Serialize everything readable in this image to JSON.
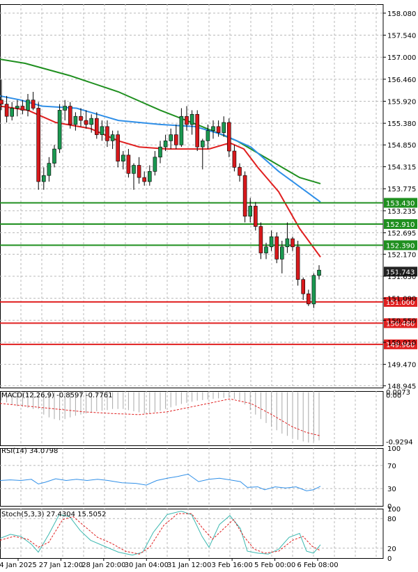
{
  "chart_data": {
    "type": "candlestick",
    "price_ticks": [
      "158.080",
      "157.540",
      "157.000",
      "156.460",
      "155.920",
      "155.380",
      "154.850",
      "154.315",
      "153.775",
      "153.235",
      "152.695",
      "152.170",
      "151.630",
      "151.090",
      "150.550",
      "150.010",
      "149.470",
      "148.945"
    ],
    "price_range": [
      148.9,
      158.3
    ],
    "x_labels": [
      "4 Jan 2025",
      "27 Jan 12:00",
      "28 Jan 20:00",
      "30 Jan 04:00",
      "31 Jan 12:00",
      "3 Feb 16:00",
      "5 Feb 00:00",
      "6 Feb 08:00"
    ],
    "colors": {
      "bull": "#1a9850",
      "bear": "#d7191c",
      "ma_slow": "#1f8f1f",
      "ma_mid": "#2f8fe8",
      "ma_fast": "#e02020",
      "resistance": "#1f8f1f",
      "support": "#e02020",
      "current": "#222222"
    },
    "candles": [
      [
        155.95,
        156.45,
        155.7,
        155.85
      ],
      [
        155.85,
        156.05,
        155.4,
        155.55
      ],
      [
        155.55,
        155.9,
        155.45,
        155.75
      ],
      [
        155.75,
        155.95,
        155.55,
        155.8
      ],
      [
        155.8,
        155.95,
        155.6,
        155.7
      ],
      [
        155.7,
        156.1,
        155.55,
        155.95
      ],
      [
        155.95,
        156.15,
        155.7,
        155.75
      ],
      [
        155.75,
        155.9,
        153.75,
        153.95
      ],
      [
        153.95,
        154.3,
        153.75,
        154.1
      ],
      [
        154.1,
        154.55,
        153.95,
        154.4
      ],
      [
        154.4,
        154.85,
        154.3,
        154.75
      ],
      [
        154.75,
        155.85,
        154.65,
        155.7
      ],
      [
        155.7,
        155.95,
        155.45,
        155.8
      ],
      [
        155.8,
        155.9,
        155.25,
        155.35
      ],
      [
        155.35,
        155.65,
        155.2,
        155.55
      ],
      [
        155.55,
        155.75,
        155.3,
        155.45
      ],
      [
        155.45,
        155.7,
        155.25,
        155.35
      ],
      [
        155.35,
        155.6,
        155.15,
        155.5
      ],
      [
        155.5,
        155.65,
        155.0,
        155.1
      ],
      [
        155.1,
        155.45,
        154.95,
        155.3
      ],
      [
        155.3,
        155.45,
        154.8,
        154.95
      ],
      [
        154.95,
        155.2,
        154.75,
        155.1
      ],
      [
        155.1,
        155.2,
        154.3,
        154.45
      ],
      [
        154.45,
        154.7,
        154.25,
        154.6
      ],
      [
        154.6,
        154.75,
        154.05,
        154.15
      ],
      [
        154.15,
        154.4,
        153.75,
        154.35
      ],
      [
        154.35,
        154.55,
        153.9,
        154.05
      ],
      [
        154.05,
        154.2,
        153.85,
        153.95
      ],
      [
        153.95,
        154.35,
        153.85,
        154.2
      ],
      [
        154.2,
        154.7,
        154.1,
        154.55
      ],
      [
        154.55,
        154.95,
        154.4,
        154.8
      ],
      [
        154.8,
        155.1,
        154.7,
        154.95
      ],
      [
        154.95,
        155.25,
        154.75,
        155.1
      ],
      [
        155.1,
        155.35,
        154.75,
        154.85
      ],
      [
        154.85,
        155.75,
        154.8,
        155.55
      ],
      [
        155.55,
        155.8,
        155.2,
        155.35
      ],
      [
        155.35,
        155.7,
        155.1,
        155.6
      ],
      [
        155.6,
        155.7,
        154.7,
        154.8
      ],
      [
        154.8,
        155.0,
        154.25,
        154.95
      ],
      [
        154.95,
        155.35,
        154.75,
        155.2
      ],
      [
        155.2,
        155.45,
        155.0,
        155.3
      ],
      [
        155.3,
        155.45,
        155.05,
        155.15
      ],
      [
        155.15,
        155.55,
        155.05,
        155.4
      ],
      [
        155.4,
        155.5,
        154.55,
        154.7
      ],
      [
        154.7,
        154.85,
        154.2,
        154.3
      ],
      [
        154.3,
        154.4,
        153.95,
        154.1
      ],
      [
        154.1,
        154.2,
        152.95,
        153.1
      ],
      [
        153.1,
        153.55,
        152.95,
        153.35
      ],
      [
        153.35,
        153.45,
        152.75,
        152.85
      ],
      [
        152.85,
        152.95,
        152.05,
        152.2
      ],
      [
        152.2,
        152.45,
        152.05,
        152.35
      ],
      [
        152.35,
        152.75,
        152.25,
        152.6
      ],
      [
        152.6,
        152.7,
        151.95,
        152.05
      ],
      [
        152.05,
        152.5,
        151.7,
        152.35
      ],
      [
        152.35,
        152.95,
        152.2,
        152.55
      ],
      [
        152.55,
        152.6,
        152.25,
        152.35
      ],
      [
        152.35,
        152.5,
        151.4,
        151.55
      ],
      [
        151.55,
        151.6,
        151.05,
        151.2
      ],
      [
        151.2,
        151.3,
        150.9,
        150.95
      ],
      [
        150.95,
        151.7,
        150.85,
        151.65
      ],
      [
        151.65,
        151.9,
        151.55,
        151.78
      ]
    ],
    "ma_slow": [
      [
        0,
        156.95
      ],
      [
        36,
        156.85
      ],
      [
        100,
        156.55
      ],
      [
        170,
        156.15
      ],
      [
        230,
        155.7
      ],
      [
        290,
        155.3
      ],
      [
        340,
        154.95
      ],
      [
        390,
        154.45
      ],
      [
        430,
        154.05
      ],
      [
        460,
        153.9
      ]
    ],
    "ma_mid": [
      [
        0,
        156.05
      ],
      [
        30,
        155.95
      ],
      [
        60,
        155.8
      ],
      [
        110,
        155.75
      ],
      [
        170,
        155.45
      ],
      [
        230,
        155.35
      ],
      [
        280,
        155.3
      ],
      [
        320,
        155.1
      ],
      [
        360,
        154.8
      ],
      [
        400,
        154.2
      ],
      [
        440,
        153.7
      ],
      [
        460,
        153.45
      ]
    ],
    "ma_fast": [
      [
        0,
        155.8
      ],
      [
        40,
        155.7
      ],
      [
        80,
        155.4
      ],
      [
        130,
        155.25
      ],
      [
        170,
        154.95
      ],
      [
        200,
        154.8
      ],
      [
        240,
        154.75
      ],
      [
        270,
        154.75
      ],
      [
        300,
        154.75
      ],
      [
        330,
        154.9
      ],
      [
        350,
        154.75
      ],
      [
        370,
        154.3
      ],
      [
        400,
        153.7
      ],
      [
        430,
        152.8
      ],
      [
        460,
        152.1
      ]
    ],
    "levels": [
      {
        "price": 153.43,
        "label": "153.430",
        "kind": "resistance"
      },
      {
        "price": 152.91,
        "label": "152.910",
        "kind": "resistance"
      },
      {
        "price": 152.39,
        "label": "152.390",
        "kind": "resistance"
      },
      {
        "price": 151.0,
        "label": "151.000",
        "kind": "support"
      },
      {
        "price": 150.48,
        "label": "150.480",
        "kind": "support"
      },
      {
        "price": 149.96,
        "label": "149.960",
        "kind": "support"
      }
    ],
    "current_price": {
      "price": 151.743,
      "label": "151.743"
    },
    "macd": {
      "label": "MACD(12,26,9) -0.8597 -0.7761",
      "scale": [
        "0.0073",
        "0.00",
        "-0.9294"
      ],
      "range": [
        -0.95,
        0.02
      ],
      "histogram": [
        -0.15,
        -0.18,
        -0.22,
        -0.25,
        -0.26,
        -0.28,
        -0.3,
        -0.3,
        -0.4,
        -0.45,
        -0.48,
        -0.5,
        -0.48,
        -0.45,
        -0.42,
        -0.4,
        -0.38,
        -0.36,
        -0.34,
        -0.33,
        -0.32,
        -0.3,
        -0.3,
        -0.3,
        -0.32,
        -0.34,
        -0.36,
        -0.38,
        -0.38,
        -0.36,
        -0.33,
        -0.3,
        -0.27,
        -0.24,
        -0.21,
        -0.19,
        -0.17,
        -0.15,
        -0.14,
        -0.13,
        -0.12,
        -0.11,
        -0.1,
        -0.1,
        -0.12,
        -0.15,
        -0.22,
        -0.32,
        -0.4,
        -0.48,
        -0.55,
        -0.62,
        -0.68,
        -0.74,
        -0.78,
        -0.82,
        -0.85,
        -0.88,
        -0.9,
        -0.88,
        -0.86
      ],
      "signal": [
        [
          0,
          -0.2
        ],
        [
          40,
          -0.25
        ],
        [
          80,
          -0.3
        ],
        [
          120,
          -0.35
        ],
        [
          160,
          -0.38
        ],
        [
          200,
          -0.4
        ],
        [
          240,
          -0.35
        ],
        [
          280,
          -0.25
        ],
        [
          330,
          -0.12
        ],
        [
          360,
          -0.2
        ],
        [
          390,
          -0.4
        ],
        [
          420,
          -0.62
        ],
        [
          440,
          -0.72
        ],
        [
          460,
          -0.78
        ]
      ]
    },
    "rsi": {
      "label": "RSI(14) 34.0798",
      "scale": [
        "100",
        "70",
        "30",
        "0"
      ],
      "range": [
        0,
        100
      ],
      "line": [
        [
          0,
          44
        ],
        [
          15,
          45
        ],
        [
          30,
          44
        ],
        [
          45,
          46
        ],
        [
          55,
          38
        ],
        [
          65,
          41
        ],
        [
          80,
          47
        ],
        [
          95,
          44
        ],
        [
          110,
          46
        ],
        [
          125,
          44
        ],
        [
          140,
          46
        ],
        [
          155,
          44
        ],
        [
          175,
          40
        ],
        [
          195,
          39
        ],
        [
          210,
          36
        ],
        [
          225,
          44
        ],
        [
          240,
          48
        ],
        [
          255,
          51
        ],
        [
          270,
          55
        ],
        [
          285,
          42
        ],
        [
          300,
          46
        ],
        [
          315,
          48
        ],
        [
          330,
          45
        ],
        [
          345,
          42
        ],
        [
          355,
          32
        ],
        [
          370,
          33
        ],
        [
          380,
          28
        ],
        [
          395,
          33
        ],
        [
          410,
          31
        ],
        [
          425,
          33
        ],
        [
          440,
          26
        ],
        [
          450,
          28
        ],
        [
          460,
          34
        ]
      ]
    },
    "stoch": {
      "label": "Stoch(5,3,3) 27.4304 15.5052",
      "scale": [
        "100",
        "80",
        "20",
        "0"
      ],
      "range": [
        0,
        100
      ],
      "k": [
        [
          0,
          40
        ],
        [
          15,
          48
        ],
        [
          30,
          44
        ],
        [
          45,
          28
        ],
        [
          55,
          12
        ],
        [
          70,
          48
        ],
        [
          85,
          88
        ],
        [
          100,
          84
        ],
        [
          115,
          56
        ],
        [
          130,
          36
        ],
        [
          150,
          24
        ],
        [
          170,
          12
        ],
        [
          190,
          6
        ],
        [
          205,
          12
        ],
        [
          220,
          52
        ],
        [
          240,
          88
        ],
        [
          260,
          95
        ],
        [
          275,
          88
        ],
        [
          290,
          44
        ],
        [
          300,
          22
        ],
        [
          315,
          68
        ],
        [
          330,
          86
        ],
        [
          345,
          60
        ],
        [
          355,
          14
        ],
        [
          370,
          10
        ],
        [
          385,
          8
        ],
        [
          400,
          18
        ],
        [
          415,
          42
        ],
        [
          430,
          50
        ],
        [
          440,
          14
        ],
        [
          450,
          10
        ],
        [
          460,
          27
        ]
      ],
      "d": [
        [
          0,
          36
        ],
        [
          20,
          44
        ],
        [
          40,
          38
        ],
        [
          55,
          22
        ],
        [
          70,
          32
        ],
        [
          90,
          78
        ],
        [
          105,
          84
        ],
        [
          120,
          66
        ],
        [
          140,
          42
        ],
        [
          160,
          30
        ],
        [
          180,
          14
        ],
        [
          200,
          8
        ],
        [
          215,
          22
        ],
        [
          235,
          66
        ],
        [
          255,
          90
        ],
        [
          275,
          90
        ],
        [
          290,
          62
        ],
        [
          305,
          38
        ],
        [
          320,
          58
        ],
        [
          335,
          78
        ],
        [
          350,
          44
        ],
        [
          365,
          18
        ],
        [
          380,
          10
        ],
        [
          400,
          14
        ],
        [
          420,
          36
        ],
        [
          435,
          44
        ],
        [
          448,
          24
        ],
        [
          460,
          15
        ]
      ]
    }
  }
}
